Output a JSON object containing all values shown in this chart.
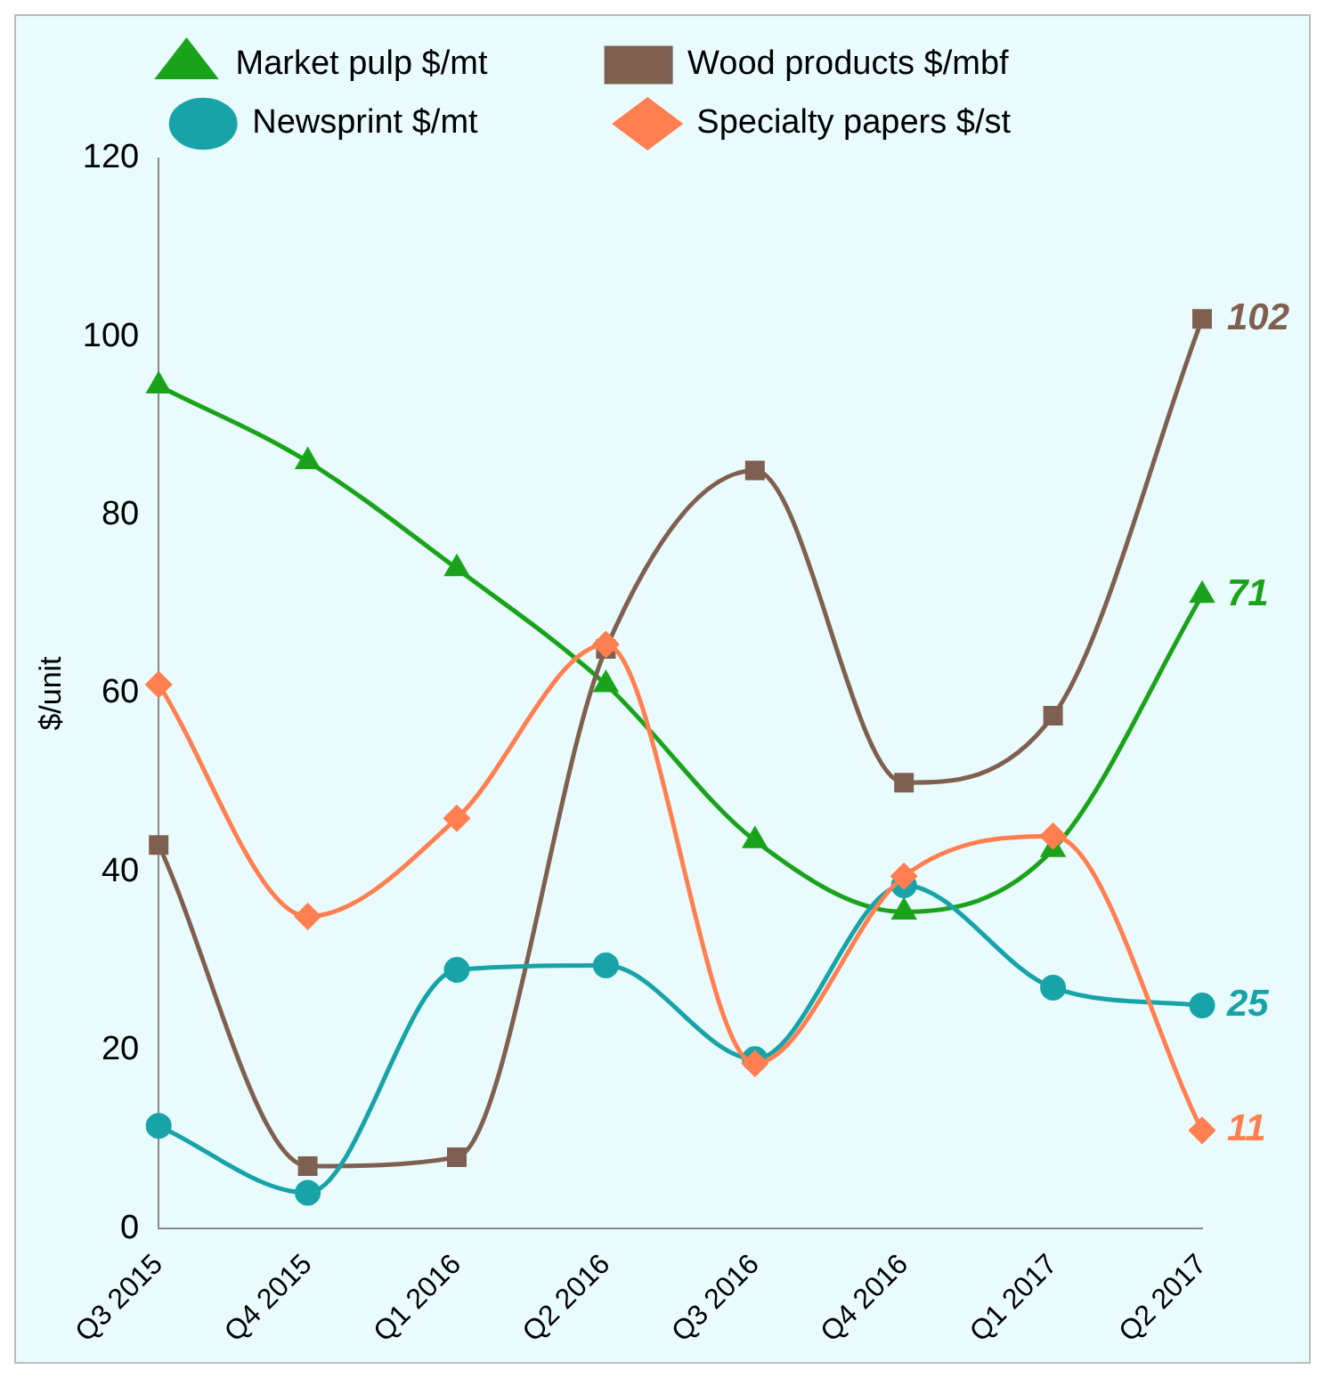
{
  "chart_data": {
    "type": "line",
    "ylabel": "$/unit",
    "categories": [
      "Q3 2015",
      "Q4 2015",
      "Q1 2016",
      "Q2 2016",
      "Q3 2016",
      "Q4 2016",
      "Q1 2017",
      "Q2 2017"
    ],
    "series": [
      {
        "name": "Market pulp $/mt",
        "color": "#1aa31a",
        "marker": "triangle",
        "values": [
          94.5,
          86,
          74,
          61,
          43.5,
          35.5,
          42.5,
          71
        ],
        "value_labels": [
          null,
          null,
          null,
          null,
          null,
          null,
          null,
          "71"
        ]
      },
      {
        "name": "Wood products $/mbf",
        "color": "#7f6050",
        "marker": "square",
        "values": [
          43,
          7,
          8,
          65,
          85,
          50,
          57.5,
          102
        ],
        "value_labels": [
          null,
          null,
          null,
          null,
          null,
          null,
          null,
          "102"
        ]
      },
      {
        "name": "Newsprint $/mt",
        "color": "#17a3a8",
        "marker": "circle",
        "values": [
          11.5,
          4,
          29,
          29.5,
          19,
          38.5,
          27,
          25
        ],
        "value_labels": [
          null,
          null,
          null,
          null,
          null,
          null,
          null,
          "25"
        ]
      },
      {
        "name": "Specialty papers $/st",
        "color": "#ff7f50",
        "marker": "diamond",
        "values": [
          61,
          35,
          46,
          65.5,
          18.5,
          39.5,
          44,
          11
        ],
        "value_labels": [
          null,
          null,
          null,
          null,
          null,
          null,
          null,
          "11"
        ]
      }
    ],
    "ylim": [
      0,
      120
    ],
    "yticks": [
      0,
      20,
      40,
      60,
      80,
      100,
      120
    ],
    "grid": false,
    "legend": "top",
    "line_style": "solid"
  }
}
